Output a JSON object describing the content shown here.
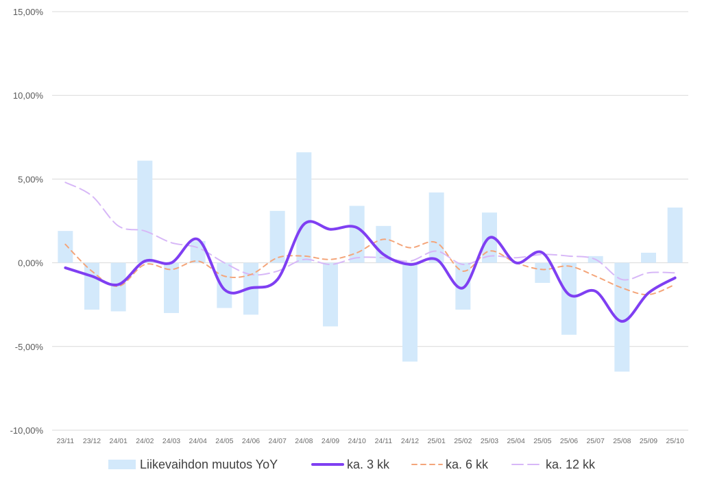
{
  "chart_data": {
    "type": "bar+line",
    "title": "",
    "xlabel": "",
    "ylabel": "",
    "ylim": [
      -10,
      15
    ],
    "yticks": [
      15,
      10,
      5,
      0,
      -5,
      -10
    ],
    "ytick_labels": [
      "15,00%",
      "10,00%",
      "5,00%",
      "0,00%",
      "-5,00%",
      "-10,00%"
    ],
    "grid": true,
    "legend_position": "bottom",
    "categories": [
      "23/11",
      "23/12",
      "24/01",
      "24/02",
      "24/03",
      "24/04",
      "24/05",
      "24/06",
      "24/07",
      "24/08",
      "24/09",
      "24/10",
      "24/11",
      "24/12",
      "25/01",
      "25/02",
      "25/03",
      "25/04",
      "25/05",
      "25/06",
      "25/07",
      "25/08",
      "25/09",
      "25/10"
    ],
    "series": [
      {
        "name": "Liikevaihdon muutos YoY",
        "kind": "bar",
        "color": "#d3e9fb",
        "values": [
          1.9,
          -2.8,
          -2.9,
          6.1,
          -3.0,
          1.3,
          -2.7,
          -3.1,
          3.1,
          6.6,
          -3.8,
          3.4,
          2.2,
          -5.9,
          4.2,
          -2.8,
          3.0,
          0.0,
          -1.2,
          -4.3,
          0.4,
          -6.5,
          0.6,
          3.3
        ]
      },
      {
        "name": "ka. 3 kk",
        "kind": "line",
        "style": "solid",
        "color": "#7f3ff2",
        "values": [
          -0.3,
          -0.8,
          -1.3,
          0.1,
          0.0,
          1.4,
          -1.6,
          -1.5,
          -1.0,
          2.3,
          2.0,
          2.1,
          0.5,
          -0.1,
          0.2,
          -1.5,
          1.5,
          0.0,
          0.6,
          -1.9,
          -1.7,
          -3.5,
          -1.8,
          -0.9
        ]
      },
      {
        "name": "ka. 6 kk",
        "kind": "line",
        "style": "dashed",
        "color": "#f4a57a",
        "values": [
          1.1,
          -0.5,
          -1.4,
          -0.1,
          -0.4,
          0.1,
          -0.8,
          -0.7,
          0.3,
          0.4,
          0.2,
          0.6,
          1.4,
          0.9,
          1.2,
          -0.5,
          0.7,
          0.0,
          -0.4,
          -0.2,
          -0.8,
          -1.5,
          -1.9,
          -1.3
        ]
      },
      {
        "name": "ka. 12 kk",
        "kind": "line",
        "style": "longdash",
        "color": "#d7b7f7",
        "values": [
          4.8,
          4.0,
          2.2,
          1.9,
          1.2,
          0.9,
          0.0,
          -0.7,
          -0.5,
          0.2,
          -0.1,
          0.3,
          0.3,
          0.1,
          0.7,
          -0.1,
          0.4,
          0.3,
          0.5,
          0.4,
          0.2,
          -1.0,
          -0.6,
          -0.6
        ]
      }
    ]
  }
}
